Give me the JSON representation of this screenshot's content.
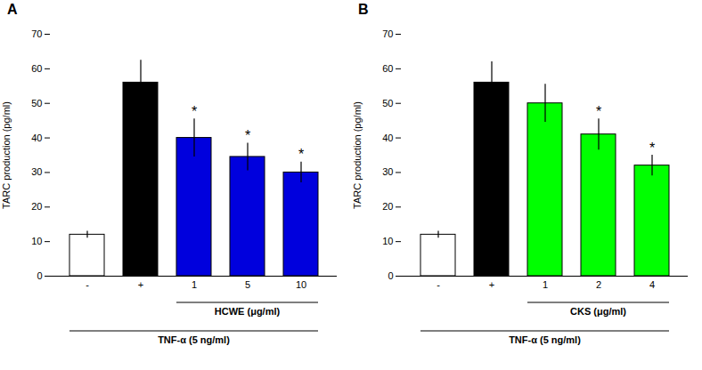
{
  "chart_data": [
    {
      "type": "bar",
      "title": "A",
      "categories": [
        "-",
        "+",
        "1",
        "5",
        "10"
      ],
      "values": [
        12,
        56,
        40,
        34.5,
        30
      ],
      "errors": [
        1.0,
        6.5,
        5.5,
        4.0,
        3.0
      ],
      "colors": [
        "white",
        "black",
        "#0000dd",
        "#0000dd",
        "#0000dd"
      ],
      "significance": [
        null,
        null,
        "*",
        "*",
        "*"
      ],
      "ylabel": "TARC production (pg/ml)",
      "ylim": [
        0,
        70
      ],
      "yticks": [
        0,
        10,
        20,
        30,
        40,
        50,
        60,
        70
      ],
      "grid": false,
      "annotations": [
        {
          "text": "HCWE (μg/ml)",
          "categories": [
            "1",
            "5",
            "10"
          ]
        },
        {
          "text": "TNF-α (5 ng/ml)",
          "categories": [
            "-",
            "+",
            "1",
            "5",
            "10"
          ]
        }
      ]
    },
    {
      "type": "bar",
      "title": "B",
      "categories": [
        "-",
        "+",
        "1",
        "2",
        "4"
      ],
      "values": [
        12,
        56,
        50,
        41,
        32
      ],
      "errors": [
        1.0,
        6.0,
        5.5,
        4.5,
        3.0
      ],
      "colors": [
        "white",
        "black",
        "#00ff00",
        "#00ff00",
        "#00ff00"
      ],
      "significance": [
        null,
        null,
        null,
        "*",
        "*"
      ],
      "ylabel": "TARC production (pg/ml)",
      "ylim": [
        0,
        70
      ],
      "yticks": [
        0,
        10,
        20,
        30,
        40,
        50,
        60,
        70
      ],
      "grid": false,
      "annotations": [
        {
          "text": "CKS (μg/ml)",
          "categories": [
            "1",
            "2",
            "4"
          ]
        },
        {
          "text": "TNF-α (5 ng/ml)",
          "categories": [
            "-",
            "+",
            "1",
            "2",
            "4"
          ]
        }
      ]
    }
  ]
}
